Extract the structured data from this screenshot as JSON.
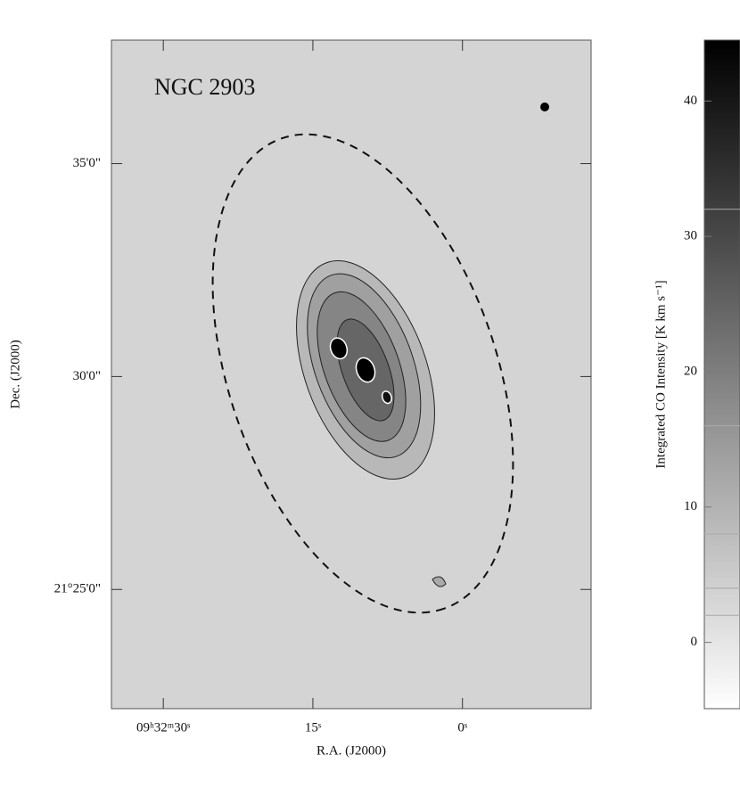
{
  "chart_data": {
    "type": "image",
    "title": "NGC 2903",
    "xlabel": "R.A. (J2000)",
    "ylabel": "Dec. (J2000)",
    "xlim": [
      35.2,
      -12.9
    ],
    "xticks": [
      {
        "value": 30,
        "label": "09ʰ32ᵐ30ˢ"
      },
      {
        "value": 15,
        "label": "15ˢ"
      },
      {
        "value": 0,
        "label": "0ˢ"
      }
    ],
    "ylim": [
      22.2,
      37.9
    ],
    "yticks": [
      {
        "value": 35,
        "label": "35'0\""
      },
      {
        "value": 30,
        "label": "30'0\""
      },
      {
        "value": 25,
        "label": "21°25'0\""
      }
    ],
    "colorbar": {
      "label": "Integrated CO Intensity [K km s⁻¹]",
      "lim": [
        -4.9,
        44.5
      ],
      "ticks": [
        0,
        10,
        20,
        30,
        40
      ],
      "contour_levels": [
        2,
        4,
        8,
        16,
        32
      ]
    }
  }
}
